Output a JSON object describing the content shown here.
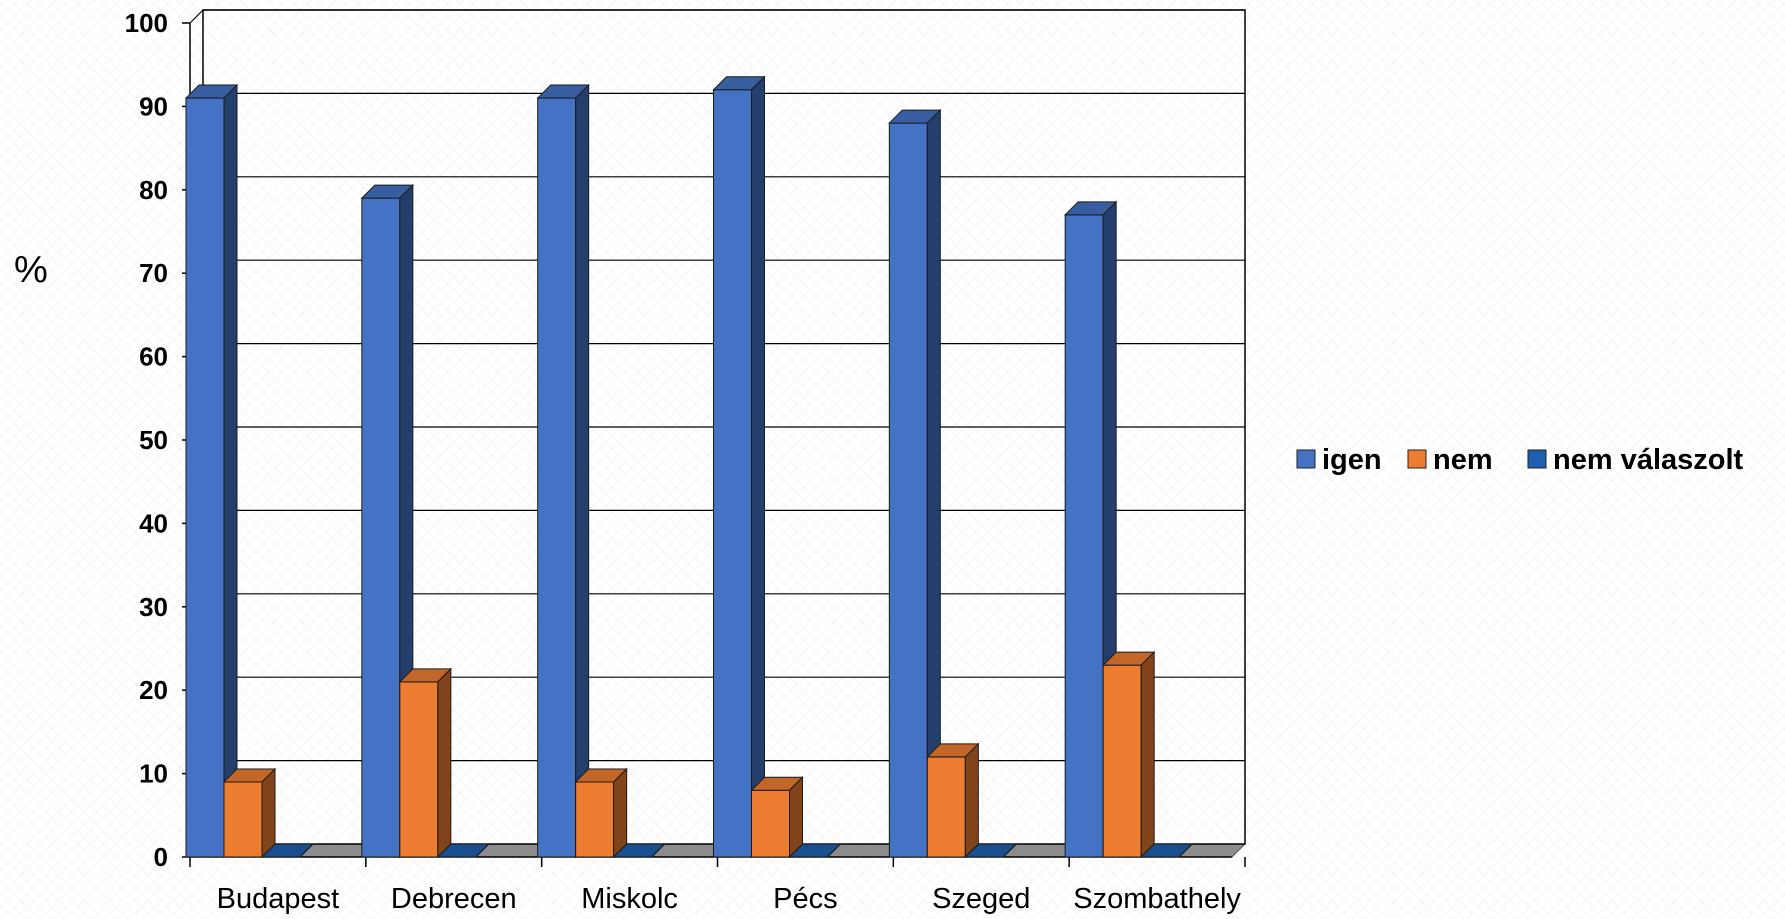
{
  "chart_data": {
    "type": "bar",
    "title": "",
    "xlabel": "",
    "ylabel": "%",
    "ylim": [
      0,
      100
    ],
    "yticks": [
      0,
      10,
      20,
      30,
      40,
      50,
      60,
      70,
      80,
      90,
      100
    ],
    "grid": true,
    "legend_position": "right",
    "categories": [
      "Budapest",
      "Debrecen",
      "Miskolc",
      "Pécs",
      "Szeged",
      "Szombathely"
    ],
    "series": [
      {
        "name": "igen",
        "color": "#4472C4",
        "values": [
          91,
          79,
          91,
          92,
          88,
          77
        ]
      },
      {
        "name": "nem",
        "color": "#ED7D31",
        "values": [
          9,
          21,
          9,
          8,
          12,
          23
        ]
      },
      {
        "name": "nem válaszolt",
        "color": "#1F5FAF",
        "values": [
          0,
          0,
          0,
          0,
          0,
          0
        ]
      }
    ]
  }
}
